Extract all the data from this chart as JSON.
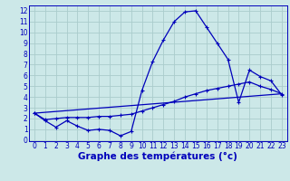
{
  "bg_color": "#cce8e8",
  "grid_color": "#aacccc",
  "line_color": "#0000bb",
  "xlim": [
    -0.5,
    23.5
  ],
  "ylim": [
    -0.1,
    12.5
  ],
  "xticks": [
    0,
    1,
    2,
    3,
    4,
    5,
    6,
    7,
    8,
    9,
    10,
    11,
    12,
    13,
    14,
    15,
    16,
    17,
    18,
    19,
    20,
    21,
    22,
    23
  ],
  "yticks": [
    0,
    1,
    2,
    3,
    4,
    5,
    6,
    7,
    8,
    9,
    10,
    11,
    12
  ],
  "line1_x": [
    0,
    1,
    2,
    3,
    4,
    5,
    6,
    7,
    8,
    9,
    10,
    11,
    12,
    13,
    14,
    15,
    16,
    17,
    18,
    19,
    20,
    21,
    22,
    23
  ],
  "line1_y": [
    2.5,
    1.8,
    1.2,
    1.8,
    1.3,
    0.9,
    1.0,
    0.9,
    0.4,
    0.8,
    4.6,
    7.3,
    9.3,
    11.0,
    11.9,
    12.0,
    10.5,
    9.0,
    7.5,
    3.5,
    6.5,
    5.9,
    5.5,
    4.2
  ],
  "line2_x": [
    0,
    1,
    2,
    3,
    4,
    5,
    6,
    7,
    8,
    9,
    10,
    11,
    12,
    13,
    14,
    15,
    16,
    17,
    18,
    19,
    20,
    21,
    22,
    23
  ],
  "line2_y": [
    2.5,
    1.9,
    2.0,
    2.1,
    2.1,
    2.1,
    2.2,
    2.2,
    2.3,
    2.4,
    2.7,
    3.0,
    3.3,
    3.6,
    4.0,
    4.3,
    4.6,
    4.8,
    5.0,
    5.2,
    5.4,
    5.0,
    4.7,
    4.3
  ],
  "line3_x": [
    0,
    23
  ],
  "line3_y": [
    2.5,
    4.3
  ],
  "xlabel": "Graphe des températures (°c)",
  "tick_fontsize": 5.5,
  "label_fontsize": 7.5
}
